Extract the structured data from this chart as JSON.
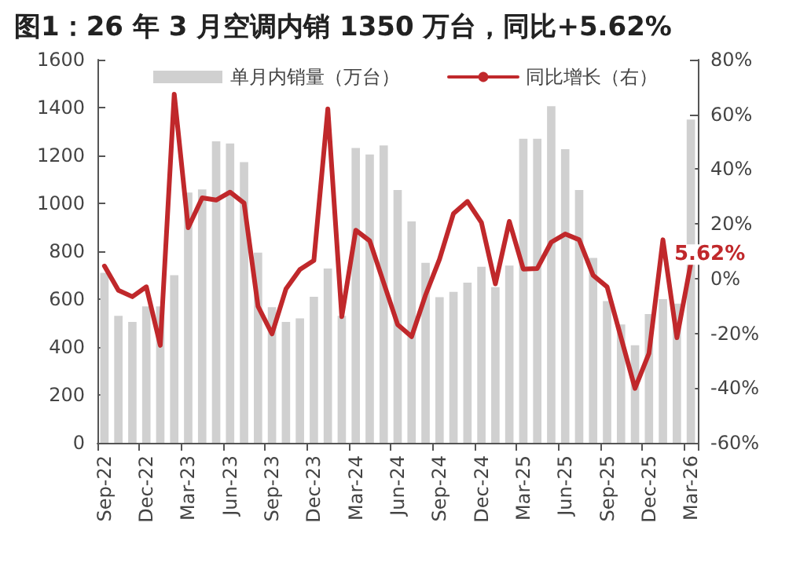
{
  "chart_data": {
    "type": "bar",
    "title": "图1：26 年 3 月空调内销 1350 万台，同比+5.62%",
    "categories": [
      "Sep-22",
      null,
      null,
      "Dec-22",
      null,
      null,
      "Mar-23",
      null,
      null,
      "Jun-23",
      null,
      null,
      "Sep-23",
      null,
      null,
      "Dec-23",
      null,
      null,
      "Mar-24",
      null,
      null,
      "Jun-24",
      null,
      null,
      "Sep-24",
      null,
      null,
      "Dec-24",
      null,
      null,
      "Mar-25",
      null,
      null,
      "Jun-25",
      null,
      null,
      "Sep-25",
      null,
      null,
      "Dec-25",
      null,
      null,
      "Mar-26"
    ],
    "series": [
      {
        "name": "单月内销量（万台）",
        "color": "#d0d0d0",
        "values": [
          710,
          530,
          505,
          570,
          570,
          700,
          1045,
          1058,
          1259,
          1250,
          1172,
          794,
          566,
          505,
          520,
          610,
          728,
          530,
          1231,
          1204,
          1242,
          1056,
          925,
          752,
          608,
          630,
          669,
          735,
          650,
          740,
          1270,
          1270,
          1406,
          1226,
          1056,
          772,
          592,
          494,
          407,
          538,
          600,
          581,
          1350
        ]
      },
      {
        "name": "同比增长（右）",
        "type": "line",
        "axis": "y2",
        "color": "#c0282b",
        "values": [
          4.6,
          -4.3,
          -6.6,
          -3.0,
          -24.4,
          67.4,
          18.6,
          29.5,
          28.7,
          31.6,
          27.6,
          -10.1,
          -20.2,
          -3.8,
          3.3,
          6.6,
          62.0,
          -13.9,
          17.7,
          13.8,
          -1.5,
          -16.8,
          -21.2,
          -6,
          7.1,
          23.8,
          28.2,
          20.5,
          -1.9,
          20.9,
          3.5,
          3.7,
          13.3,
          16.3,
          14.2,
          1.2,
          -3.0,
          -21.6,
          -40.1,
          -27.3,
          14.2,
          -21.6,
          5.62
        ],
        "value_labels": [
          null,
          null,
          null,
          null,
          null,
          null,
          null,
          null,
          null,
          null,
          null,
          null,
          null,
          null,
          null,
          null,
          null,
          null,
          null,
          null,
          null,
          null,
          null,
          null,
          null,
          null,
          null,
          null,
          null,
          null,
          null,
          null,
          null,
          null,
          null,
          null,
          null,
          null,
          null,
          null,
          null,
          null,
          "5.62%"
        ]
      }
    ],
    "ylim": [
      0,
      1600
    ],
    "yticks": [
      0,
      200,
      400,
      600,
      800,
      1000,
      1200,
      1400,
      1600
    ],
    "y2lim": [
      -60,
      80
    ],
    "y2ticks": [
      {
        "value": -60,
        "label": "-60%"
      },
      {
        "value": -40,
        "label": "-40%"
      },
      {
        "value": -20,
        "label": "-20%"
      },
      {
        "value": 0,
        "label": "0%"
      },
      {
        "value": 20,
        "label": "20%"
      },
      {
        "value": 40,
        "label": "40%"
      },
      {
        "value": 60,
        "label": "60%"
      },
      {
        "value": 80,
        "label": "80%"
      }
    ],
    "grid": false,
    "legend": "top",
    "marker": "none",
    "line_style": "solid"
  }
}
